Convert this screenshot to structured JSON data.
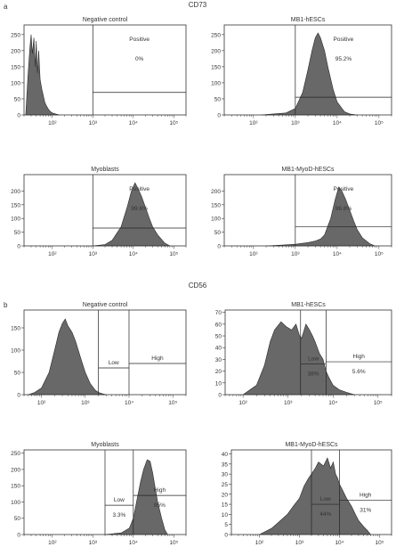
{
  "figure": {
    "section_a_title": "CD73",
    "section_a_letter": "a",
    "section_b_title": "CD56",
    "section_b_letter": "b"
  },
  "colors": {
    "fill": "#686868",
    "stroke": "#2a2a2a",
    "axis": "#333333",
    "gate": "#222222"
  },
  "chart_data": [
    {
      "type": "area",
      "panel": "a-1",
      "title": "Negative control",
      "xscale": "log",
      "xlim": [
        20,
        200000
      ],
      "ylim": [
        0,
        280
      ],
      "yticks": [
        0,
        50,
        100,
        150,
        200,
        250
      ],
      "xticks": [
        {
          "value": 100,
          "label": "10²"
        },
        {
          "value": 1000,
          "label": "10³"
        },
        {
          "value": 10000,
          "label": "10⁴"
        },
        {
          "value": 100000,
          "label": "10⁵"
        }
      ],
      "gates": [
        {
          "type": "rect",
          "x1": 1000,
          "x2": 200000,
          "y": 70,
          "label": "Positive",
          "pct": "0%"
        }
      ],
      "series": [
        {
          "x": [
            22,
            25,
            28,
            30,
            32,
            35,
            38,
            40,
            43,
            46,
            50,
            55,
            60,
            65,
            70,
            80,
            90,
            100,
            120,
            150
          ],
          "y": [
            0,
            120,
            210,
            250,
            190,
            240,
            150,
            230,
            130,
            200,
            110,
            80,
            60,
            40,
            30,
            18,
            10,
            6,
            3,
            0
          ]
        }
      ]
    },
    {
      "type": "area",
      "panel": "a-2",
      "title": "MB1-hESCs",
      "xscale": "log",
      "xlim": [
        20,
        200000
      ],
      "ylim": [
        0,
        280
      ],
      "yticks": [
        0,
        50,
        100,
        150,
        200,
        250
      ],
      "xticks": [
        {
          "value": 100,
          "label": "10²"
        },
        {
          "value": 1000,
          "label": "10³"
        },
        {
          "value": 10000,
          "label": "10⁴"
        },
        {
          "value": 100000,
          "label": "10⁵"
        }
      ],
      "gates": [
        {
          "type": "rect",
          "x1": 1000,
          "x2": 200000,
          "y": 55,
          "label": "Positive",
          "pct": "95.2%"
        }
      ],
      "series": [
        {
          "x": [
            150,
            300,
            600,
            1000,
            1500,
            2000,
            2500,
            3000,
            3500,
            4000,
            5000,
            6000,
            8000,
            10000,
            15000,
            20000,
            30000
          ],
          "y": [
            0,
            3,
            6,
            20,
            70,
            140,
            200,
            240,
            255,
            240,
            200,
            150,
            80,
            40,
            10,
            3,
            0
          ]
        }
      ]
    },
    {
      "type": "area",
      "panel": "a-3",
      "title": "Myoblasts",
      "xscale": "log",
      "xlim": [
        20,
        200000
      ],
      "ylim": [
        0,
        260
      ],
      "yticks": [
        0,
        50,
        100,
        150,
        200
      ],
      "xticks": [
        {
          "value": 100,
          "label": "10²"
        },
        {
          "value": 1000,
          "label": "10³"
        },
        {
          "value": 10000,
          "label": "10⁴"
        },
        {
          "value": 100000,
          "label": "10⁵"
        }
      ],
      "gates": [
        {
          "type": "rect",
          "x1": 1000,
          "x2": 200000,
          "y": 65,
          "label": "Positive",
          "pct": "99.6%"
        }
      ],
      "series": [
        {
          "x": [
            1000,
            2000,
            3000,
            5000,
            7000,
            9000,
            11000,
            13000,
            16000,
            20000,
            25000,
            30000,
            40000,
            60000,
            80000
          ],
          "y": [
            0,
            5,
            20,
            70,
            140,
            200,
            230,
            210,
            180,
            140,
            100,
            70,
            40,
            10,
            0
          ]
        }
      ]
    },
    {
      "type": "area",
      "panel": "a-4",
      "title": "MB1-MyoD-hESCs",
      "xscale": "log",
      "xlim": [
        20,
        200000
      ],
      "ylim": [
        0,
        260
      ],
      "yticks": [
        0,
        50,
        100,
        150,
        200
      ],
      "xticks": [
        {
          "value": 100,
          "label": "10²"
        },
        {
          "value": 1000,
          "label": "10³"
        },
        {
          "value": 10000,
          "label": "10⁴"
        },
        {
          "value": 100000,
          "label": "10⁵"
        }
      ],
      "gates": [
        {
          "type": "rect",
          "x1": 1000,
          "x2": 200000,
          "y": 70,
          "label": "Positive",
          "pct": "96.8%"
        }
      ],
      "series": [
        {
          "x": [
            200,
            500,
            1000,
            2000,
            3000,
            4000,
            5000,
            7000,
            9000,
            11000,
            13000,
            16000,
            20000,
            25000,
            30000,
            40000,
            60000,
            80000
          ],
          "y": [
            0,
            3,
            6,
            12,
            18,
            25,
            40,
            100,
            170,
            215,
            200,
            170,
            130,
            90,
            60,
            30,
            8,
            0
          ]
        }
      ]
    },
    {
      "type": "area",
      "panel": "b-1",
      "title": "Negative control",
      "xscale": "log",
      "xlim": [
        40,
        200000
      ],
      "ylim": [
        0,
        190
      ],
      "yticks": [
        0,
        50,
        100,
        150
      ],
      "xticks": [
        {
          "value": 100,
          "label": "10²"
        },
        {
          "value": 1000,
          "label": "10³"
        },
        {
          "value": 10000,
          "label": "10⁴"
        },
        {
          "value": 100000,
          "label": "10⁵"
        }
      ],
      "gates": [
        {
          "type": "rect",
          "x1": 2000,
          "x2": 10000,
          "y": 60,
          "label": "Low",
          "pct": ""
        },
        {
          "type": "rect",
          "x1": 10000,
          "x2": 200000,
          "y": 70,
          "label": "High",
          "pct": ""
        }
      ],
      "series": [
        {
          "x": [
            50,
            70,
            100,
            150,
            200,
            250,
            300,
            350,
            400,
            500,
            600,
            800,
            1000,
            1300,
            1700,
            2000,
            2500,
            3000
          ],
          "y": [
            0,
            5,
            15,
            50,
            100,
            140,
            160,
            170,
            155,
            140,
            120,
            80,
            50,
            25,
            10,
            5,
            2,
            0
          ]
        }
      ]
    },
    {
      "type": "area",
      "panel": "b-2",
      "title": "MB1-hESCs",
      "xscale": "log",
      "xlim": [
        40,
        200000
      ],
      "ylim": [
        0,
        72
      ],
      "yticks": [
        0,
        10,
        20,
        30,
        40,
        50,
        60,
        70
      ],
      "xticks": [
        {
          "value": 100,
          "label": "10²"
        },
        {
          "value": 1000,
          "label": "10³"
        },
        {
          "value": 10000,
          "label": "10⁴"
        },
        {
          "value": 100000,
          "label": "10⁵"
        }
      ],
      "gates": [
        {
          "type": "rect",
          "x1": 1900,
          "x2": 7000,
          "y": 26,
          "label": "Low",
          "pct": "38%"
        },
        {
          "type": "rect",
          "x1": 7000,
          "x2": 200000,
          "y": 28,
          "label": "High",
          "pct": "5.6%"
        }
      ],
      "series": [
        {
          "x": [
            100,
            200,
            300,
            400,
            500,
            700,
            900,
            1200,
            1500,
            1800,
            2000,
            2500,
            3000,
            3500,
            4000,
            5000,
            6000,
            7000,
            8000,
            10000,
            14000,
            20000,
            30000
          ],
          "y": [
            0,
            8,
            25,
            45,
            55,
            62,
            58,
            55,
            60,
            50,
            48,
            60,
            55,
            50,
            45,
            35,
            30,
            20,
            15,
            8,
            4,
            2,
            0
          ]
        }
      ]
    },
    {
      "type": "area",
      "panel": "b-3",
      "title": "Myoblasts",
      "xscale": "log",
      "xlim": [
        20,
        200000
      ],
      "ylim": [
        0,
        260
      ],
      "yticks": [
        0,
        50,
        100,
        150,
        200,
        250
      ],
      "xticks": [
        {
          "value": 100,
          "label": "10²"
        },
        {
          "value": 1000,
          "label": "10³"
        },
        {
          "value": 10000,
          "label": "10⁴"
        },
        {
          "value": 100000,
          "label": "10⁵"
        }
      ],
      "gates": [
        {
          "type": "rect",
          "x1": 2000,
          "x2": 10000,
          "y": 90,
          "label": "Low",
          "pct": "3.3%"
        },
        {
          "type": "rect",
          "x1": 10000,
          "x2": 200000,
          "y": 120,
          "label": "High",
          "pct": "95%"
        }
      ],
      "series": [
        {
          "x": [
            2000,
            5000,
            8000,
            10000,
            12000,
            15000,
            18000,
            22000,
            26000,
            30000,
            35000,
            40000,
            50000,
            60000,
            70000
          ],
          "y": [
            0,
            5,
            20,
            50,
            100,
            160,
            200,
            230,
            225,
            190,
            140,
            100,
            50,
            15,
            0
          ]
        }
      ]
    },
    {
      "type": "area",
      "panel": "b-4",
      "title": "MB1-MyoD-hESCs",
      "xscale": "log",
      "xlim": [
        20,
        200000
      ],
      "ylim": [
        0,
        42
      ],
      "yticks": [
        0,
        5,
        10,
        15,
        20,
        25,
        30,
        35,
        40
      ],
      "xticks": [
        {
          "value": 100,
          "label": "10²"
        },
        {
          "value": 1000,
          "label": "10³"
        },
        {
          "value": 10000,
          "label": "10⁴"
        },
        {
          "value": 100000,
          "label": "10⁵"
        }
      ],
      "gates": [
        {
          "type": "rect",
          "x1": 2000,
          "x2": 10000,
          "y": 15,
          "label": "Low",
          "pct": "44%"
        },
        {
          "type": "rect",
          "x1": 10000,
          "x2": 200000,
          "y": 17,
          "label": "High",
          "pct": "31%"
        }
      ],
      "series": [
        {
          "x": [
            100,
            200,
            300,
            500,
            700,
            1000,
            1300,
            1700,
            2000,
            2500,
            3000,
            4000,
            5000,
            6000,
            7000,
            8000,
            9000,
            10000,
            12000,
            15000,
            20000,
            25000,
            30000,
            40000,
            50000,
            60000
          ],
          "y": [
            0,
            3,
            6,
            10,
            14,
            18,
            24,
            28,
            30,
            33,
            36,
            34,
            38,
            33,
            36,
            30,
            28,
            25,
            22,
            18,
            14,
            10,
            7,
            4,
            2,
            0
          ]
        }
      ]
    }
  ]
}
